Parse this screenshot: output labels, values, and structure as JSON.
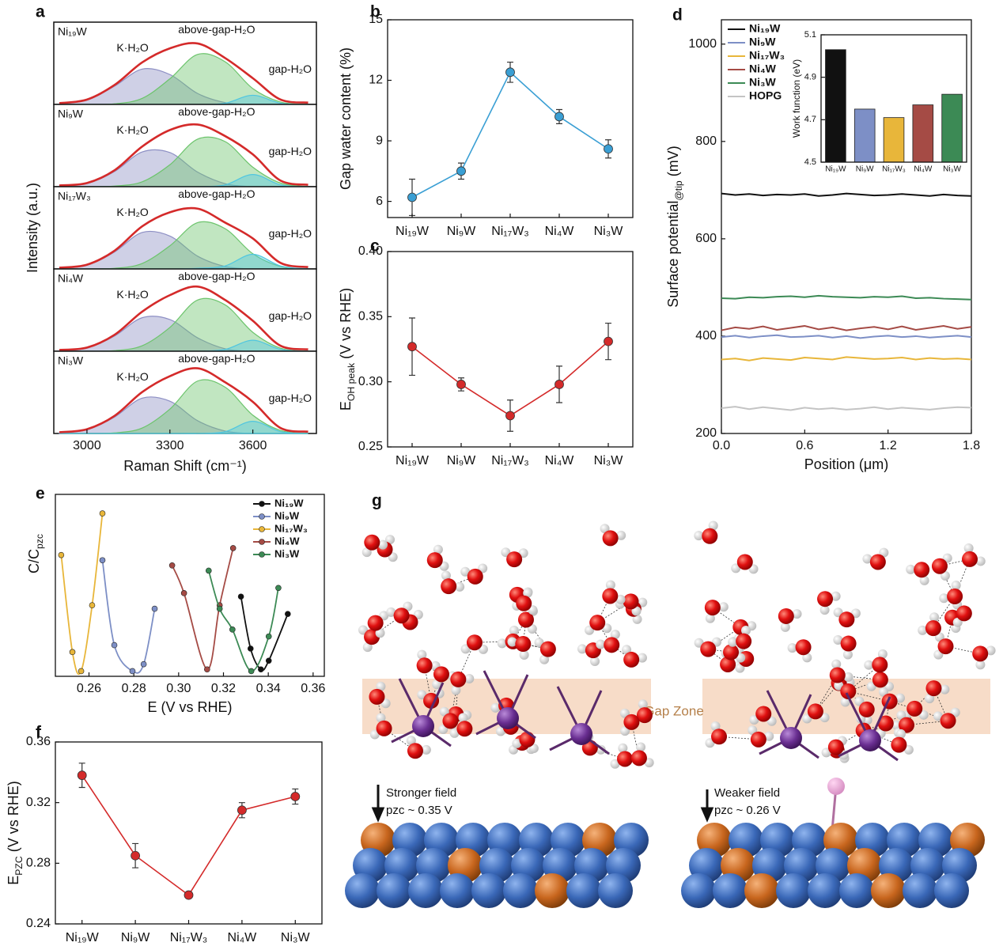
{
  "chart_data": [
    {
      "type": "area",
      "panel_label": "a",
      "xlabel": "Raman Shift (cm⁻¹)",
      "ylabel": "Intensity (a.u.)",
      "xlim": [
        2880,
        3830
      ],
      "xticks": [
        3000,
        3300,
        3600
      ],
      "ylim": [
        0,
        1.35
      ],
      "x": [
        2900,
        3000,
        3100,
        3200,
        3300,
        3400,
        3500,
        3600,
        3700,
        3800
      ],
      "panels": [
        {
          "sample": "Ni₁₉W",
          "annotations": [
            "K·H₂O",
            "above-gap-H₂O",
            "gap-H₂O"
          ],
          "series": [
            {
              "color": "#d42a2a",
              "values": [
                0.02,
                0.08,
                0.32,
                0.69,
                0.92,
                1.0,
                0.76,
                0.43,
                0.08,
                0.03
              ]
            },
            {
              "color": "#8d8fc4",
              "fill": true,
              "values": [
                0.01,
                0.07,
                0.3,
                0.58,
                0.49,
                0.18,
                0.03,
                0,
                0,
                0
              ]
            },
            {
              "color": "#6cc46c",
              "fill": true,
              "values": [
                0,
                0,
                0.01,
                0.1,
                0.42,
                0.82,
                0.7,
                0.26,
                0.04,
                0
              ]
            },
            {
              "color": "#4fc6e0",
              "fill": true,
              "values": [
                0,
                0,
                0,
                0,
                0,
                0,
                0.02,
                0.15,
                0.02,
                0
              ]
            }
          ]
        },
        {
          "sample": "Ni₉W",
          "annotations": [
            "K·H₂O",
            "above-gap-H₂O",
            "gap-H₂O"
          ],
          "series": [
            {
              "color": "#d42a2a",
              "values": [
                0.02,
                0.06,
                0.27,
                0.66,
                0.93,
                1.02,
                0.83,
                0.53,
                0.1,
                0.03
              ]
            },
            {
              "color": "#8d8fc4",
              "fill": true,
              "values": [
                0.01,
                0.05,
                0.25,
                0.57,
                0.56,
                0.24,
                0.05,
                0,
                0,
                0
              ]
            },
            {
              "color": "#6cc46c",
              "fill": true,
              "values": [
                0,
                0,
                0.01,
                0.08,
                0.36,
                0.78,
                0.74,
                0.32,
                0.06,
                0
              ]
            },
            {
              "color": "#4fc6e0",
              "fill": true,
              "values": [
                0,
                0,
                0,
                0,
                0,
                0,
                0.03,
                0.2,
                0.03,
                0
              ]
            }
          ]
        },
        {
          "sample": "Ni₁₇W₃",
          "annotations": [
            "K·H₂O",
            "above-gap-H₂O",
            "gap-H₂O"
          ],
          "series": [
            {
              "color": "#d42a2a",
              "values": [
                0.02,
                0.07,
                0.3,
                0.7,
                0.93,
                0.99,
                0.76,
                0.5,
                0.1,
                0.03
              ]
            },
            {
              "color": "#8d8fc4",
              "fill": true,
              "values": [
                0.01,
                0.06,
                0.28,
                0.6,
                0.54,
                0.21,
                0.04,
                0,
                0,
                0
              ]
            },
            {
              "color": "#6cc46c",
              "fill": true,
              "values": [
                0,
                0,
                0.01,
                0.09,
                0.38,
                0.76,
                0.66,
                0.25,
                0.04,
                0
              ]
            },
            {
              "color": "#4fc6e0",
              "fill": true,
              "values": [
                0,
                0,
                0,
                0,
                0,
                0.01,
                0.05,
                0.24,
                0.05,
                0
              ]
            }
          ]
        },
        {
          "sample": "Ni₄W",
          "annotations": [
            "K·H₂O",
            "above-gap-H₂O",
            "gap-H₂O"
          ],
          "series": [
            {
              "color": "#d42a2a",
              "values": [
                0.02,
                0.06,
                0.27,
                0.65,
                0.92,
                1.06,
                0.84,
                0.5,
                0.09,
                0.03
              ]
            },
            {
              "color": "#8d8fc4",
              "fill": true,
              "values": [
                0.01,
                0.05,
                0.25,
                0.55,
                0.52,
                0.22,
                0.04,
                0,
                0,
                0
              ]
            },
            {
              "color": "#6cc46c",
              "fill": true,
              "values": [
                0,
                0,
                0.01,
                0.09,
                0.39,
                0.84,
                0.76,
                0.31,
                0.05,
                0
              ]
            },
            {
              "color": "#4fc6e0",
              "fill": true,
              "values": [
                0,
                0,
                0,
                0,
                0,
                0,
                0.03,
                0.18,
                0.03,
                0
              ]
            }
          ]
        },
        {
          "sample": "Ni₃W",
          "annotations": [
            "K·H₂O",
            "above-gap-H₂O",
            "gap-H₂O"
          ],
          "series": [
            {
              "color": "#d42a2a",
              "values": [
                0.02,
                0.07,
                0.29,
                0.68,
                0.94,
                1.07,
                0.84,
                0.52,
                0.09,
                0.03
              ]
            },
            {
              "color": "#8d8fc4",
              "fill": true,
              "values": [
                0.01,
                0.06,
                0.27,
                0.58,
                0.53,
                0.21,
                0.04,
                0,
                0,
                0
              ]
            },
            {
              "color": "#6cc46c",
              "fill": true,
              "values": [
                0,
                0,
                0.01,
                0.09,
                0.4,
                0.86,
                0.76,
                0.3,
                0.05,
                0
              ]
            },
            {
              "color": "#4fc6e0",
              "fill": true,
              "values": [
                0,
                0,
                0,
                0,
                0,
                0,
                0.03,
                0.2,
                0.03,
                0
              ]
            }
          ]
        }
      ]
    },
    {
      "type": "line",
      "panel_label": "b",
      "ylabel": "Gap water content (%)",
      "categories": [
        "Ni₁₉W",
        "Ni₉W",
        "Ni₁₇W₃",
        "Ni₄W",
        "Ni₃W"
      ],
      "values": [
        6.2,
        7.5,
        12.4,
        10.2,
        8.6
      ],
      "errors": [
        0.9,
        0.4,
        0.5,
        0.35,
        0.45
      ],
      "color": "#3a9fd4",
      "ylim": [
        5.2,
        15
      ],
      "yticks": [
        6,
        9,
        12,
        15
      ]
    },
    {
      "type": "line",
      "panel_label": "c",
      "ylabel": [
        "E",
        "OH peak",
        " (V vs RHE)"
      ],
      "categories": [
        "Ni₁₉W",
        "Ni₉W",
        "Ni₁₇W₃",
        "Ni₄W",
        "Ni₃W"
      ],
      "values": [
        0.327,
        0.298,
        0.274,
        0.298,
        0.331
      ],
      "errors": [
        0.022,
        0.005,
        0.012,
        0.014,
        0.014
      ],
      "color": "#d42a2a",
      "ylim": [
        0.25,
        0.4
      ],
      "yticks": [
        0.25,
        {
          "value": 0.3,
          "label": "0.30"
        },
        0.35,
        {
          "value": 0.4,
          "label": "0.40"
        }
      ]
    },
    {
      "type": "line",
      "panel_label": "d",
      "xlabel": "Position (μm)",
      "ylabel": [
        "Surface potential",
        "@tip",
        " (mV)"
      ],
      "x": [
        0,
        0.1,
        0.2,
        0.3,
        0.4,
        0.5,
        0.6,
        0.7,
        0.8,
        0.9,
        1,
        1.1,
        1.2,
        1.3,
        1.4,
        1.5,
        1.6,
        1.7,
        1.8
      ],
      "xlim": [
        0,
        1.8
      ],
      "xticks": [
        {
          "value": 0,
          "label": "0.0"
        },
        0.6,
        1.2,
        1.8
      ],
      "ylim": [
        200,
        1050
      ],
      "yticks": [
        200,
        400,
        600,
        800,
        1000
      ],
      "legend": "upper left",
      "series": [
        {
          "name": "Ni₁₉W",
          "color": "#111111",
          "values": [
            693,
            690,
            692,
            689,
            691,
            690,
            692,
            688,
            690,
            693,
            691,
            689,
            690,
            692,
            690,
            688,
            691,
            689,
            688
          ]
        },
        {
          "name": "Ni₉W",
          "color": "#7d8fc6",
          "values": [
            398,
            401,
            397,
            400,
            402,
            398,
            399,
            401,
            397,
            400,
            396,
            399,
            401,
            398,
            400,
            397,
            399,
            401,
            398
          ]
        },
        {
          "name": "Ni₁₇W₃",
          "color": "#e8b63a",
          "values": [
            352,
            354,
            350,
            355,
            353,
            351,
            356,
            354,
            352,
            357,
            355,
            353,
            354,
            356,
            352,
            355,
            353,
            354,
            352
          ]
        },
        {
          "name": "Ni₄W",
          "color": "#a54b45",
          "values": [
            412,
            418,
            415,
            420,
            413,
            417,
            421,
            414,
            418,
            412,
            416,
            419,
            414,
            420,
            413,
            417,
            421,
            415,
            419
          ]
        },
        {
          "name": "Ni₃W",
          "color": "#3c8a55",
          "values": [
            478,
            477,
            480,
            479,
            481,
            482,
            480,
            483,
            481,
            480,
            479,
            481,
            480,
            482,
            478,
            479,
            477,
            476,
            475
          ]
        },
        {
          "name": "HOPG",
          "color": "#c4c4c4",
          "values": [
            252,
            255,
            250,
            254,
            251,
            248,
            253,
            250,
            252,
            249,
            251,
            254,
            250,
            253,
            251,
            249,
            252,
            254,
            253
          ]
        }
      ]
    },
    {
      "type": "bar",
      "ylabel": "Work function (eV)",
      "categories": [
        "Ni₁₉W",
        "Ni₉W",
        "Ni₁₇W₃",
        "Ni₄W",
        "Ni₃W"
      ],
      "values": [
        5.03,
        4.75,
        4.71,
        4.77,
        4.82
      ],
      "colors": [
        "#111111",
        "#7d8fc6",
        "#e8b63a",
        "#a54b45",
        "#3c8a55"
      ],
      "ylim": [
        4.5,
        5.1
      ],
      "yticks": [
        4.5,
        4.7,
        4.9,
        5.1
      ]
    },
    {
      "type": "scatter",
      "panel_label": "e",
      "xlabel": "E (V vs RHE)",
      "ylabel": [
        "C/C",
        "pzc"
      ],
      "xlim": [
        0.245,
        0.365
      ],
      "xticks": [
        0.26,
        0.28,
        {
          "value": 0.3,
          "label": "0.30"
        },
        0.32,
        0.34,
        0.36
      ],
      "ylim": [
        0,
        1.05
      ],
      "legend": "upper right",
      "series": [
        {
          "name": "Ni₁₉W",
          "color": "#111111",
          "x": [
            0.3278,
            0.3321,
            0.3367,
            0.3402,
            0.3487
          ],
          "values": [
            0.46,
            0.16,
            0.04,
            0.09,
            0.36
          ]
        },
        {
          "name": "Ni₉W",
          "color": "#7d8fc6",
          "x": [
            0.266,
            0.2713,
            0.2794,
            0.2844,
            0.2893
          ],
          "values": [
            0.67,
            0.18,
            0.03,
            0.07,
            0.39
          ]
        },
        {
          "name": "Ni₁₇W₃",
          "color": "#e8b63a",
          "x": [
            0.2476,
            0.2526,
            0.2565,
            0.2614,
            0.266
          ],
          "values": [
            0.7,
            0.14,
            0.03,
            0.41,
            0.94
          ]
        },
        {
          "name": "Ni₄W",
          "color": "#a54b45",
          "x": [
            0.2971,
            0.3024,
            0.3127,
            0.3183,
            0.3243
          ],
          "values": [
            0.64,
            0.48,
            0.04,
            0.41,
            0.74
          ]
        },
        {
          "name": "Ni₃W",
          "color": "#3c8a55",
          "x": [
            0.3134,
            0.3183,
            0.324,
            0.3324,
            0.3402,
            0.3445
          ],
          "values": [
            0.61,
            0.39,
            0.27,
            0.03,
            0.23,
            0.51
          ]
        }
      ]
    },
    {
      "type": "line",
      "panel_label": "f",
      "ylabel": [
        "E",
        "PZC",
        " (V vs RHE)"
      ],
      "categories": [
        "Ni₁₉W",
        "Ni₉W",
        "Ni₁₇W₃",
        "Ni₄W",
        "Ni₃W"
      ],
      "values": [
        0.338,
        0.285,
        0.259,
        0.315,
        0.324
      ],
      "errors": [
        0.008,
        0.008,
        0.001,
        0.005,
        0.005
      ],
      "color": "#d42a2a",
      "ylim": [
        0.24,
        0.36
      ],
      "yticks": [
        0.24,
        0.28,
        0.32,
        0.36
      ]
    }
  ],
  "diagram": {
    "panel_label": "g",
    "zone_label": "Gap Zone",
    "left": {
      "field": "Stronger field",
      "pzc": "pzc ~ 0.35 V"
    },
    "right": {
      "field": "Weaker field",
      "pzc": "pzc ~ 0.26 V"
    }
  }
}
